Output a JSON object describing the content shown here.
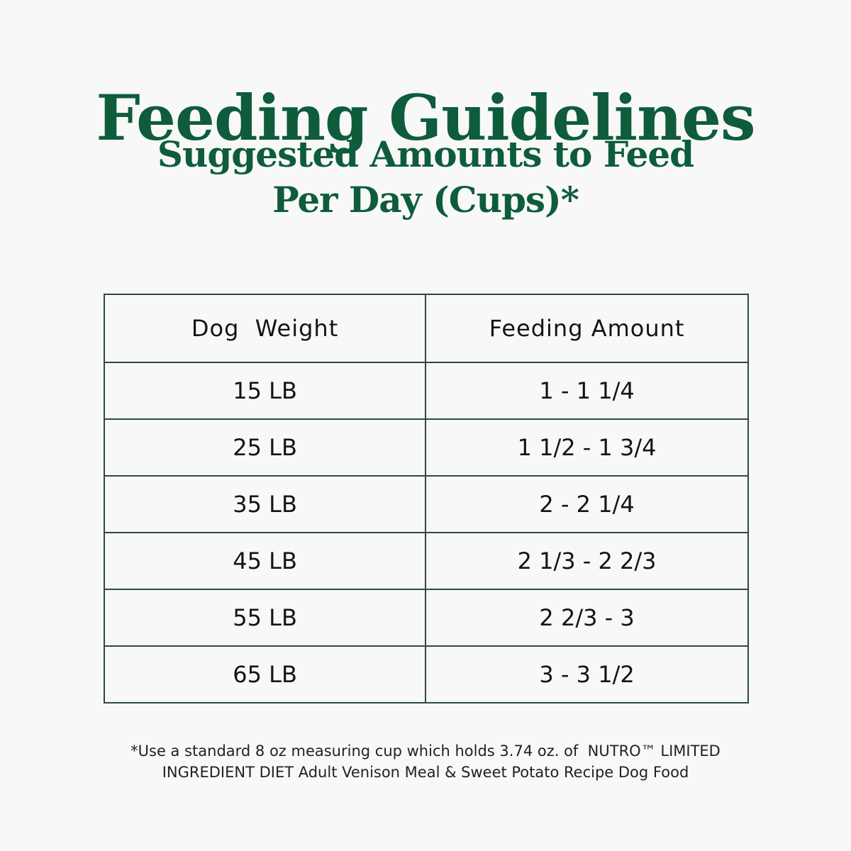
{
  "header": {
    "title": "Feeding Guidelines",
    "subtitle_line1": "Suggested Amounts to Feed",
    "subtitle_line2": "Per Day (Cups)*"
  },
  "table": {
    "headers": [
      "Dog  Weight",
      "Feeding Amount"
    ],
    "rows": [
      {
        "weight": "15 LB",
        "amount": "1 - 1 1/4"
      },
      {
        "weight": "25 LB",
        "amount": "1 1/2 - 1 3/4"
      },
      {
        "weight": "35 LB",
        "amount": "2 - 2 1/4"
      },
      {
        "weight": "45 LB",
        "amount": "2 1/3 - 2 2/3"
      },
      {
        "weight": "55 LB",
        "amount": "2 2/3 - 3"
      },
      {
        "weight": "65 LB",
        "amount": "3 - 3 1/2"
      }
    ]
  },
  "footnote": {
    "line1": "*Use a standard 8 oz measuring cup which holds 3.74 oz. of  NUTRO™ LIMITED",
    "line2": "INGREDIENT DIET Adult Venison Meal & Sweet Potato Recipe Dog Food"
  },
  "colors": {
    "title_green": "#0e5c3c",
    "table_border": "#2e4a40",
    "background": "#f7f8f7"
  }
}
